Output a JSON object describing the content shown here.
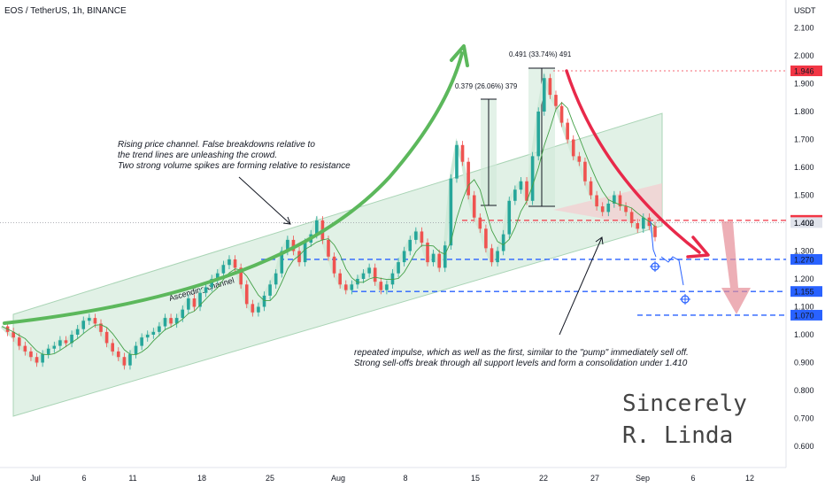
{
  "header": {
    "symbol_title": "EOS / TetherUS, 1h, BINANCE",
    "currency": "USDT"
  },
  "chart_data": {
    "type": "line",
    "title": "EOS / TetherUS, 1h, BINANCE",
    "ylabel": "USDT",
    "ylim": [
      0.55,
      2.17
    ],
    "y_ticks": [
      "2.100",
      "2.000",
      "1.900",
      "1.800",
      "1.700",
      "1.600",
      "1.500",
      "1.400",
      "1.300",
      "1.200",
      "1.100",
      "1.000",
      "0.900",
      "0.800",
      "0.700",
      "0.600"
    ],
    "x_ticks": [
      "Jul",
      "6",
      "11",
      "18",
      "25",
      "Aug",
      "8",
      "15",
      "22",
      "27",
      "Sep",
      "6",
      "12"
    ],
    "price_labels": [
      {
        "value": 1.946,
        "text": "1.946",
        "color": "#f23645"
      },
      {
        "value": 1.41,
        "text": "1.410",
        "color": "#f23645"
      },
      {
        "value": 1.402,
        "text": "1.402",
        "color": "#e0e3eb"
      },
      {
        "value": 1.27,
        "text": "1.270",
        "color": "#2962ff"
      },
      {
        "value": 1.155,
        "text": "1.155",
        "color": "#2962ff"
      },
      {
        "value": 1.07,
        "text": "1.070",
        "color": "#2962ff"
      }
    ],
    "price_series": [
      1.03,
      1.01,
      0.99,
      0.96,
      0.94,
      0.92,
      0.9,
      0.93,
      0.95,
      0.96,
      0.98,
      0.97,
      1.0,
      1.02,
      1.05,
      1.06,
      1.04,
      1.01,
      0.97,
      0.94,
      0.92,
      0.89,
      0.93,
      0.96,
      0.99,
      1.0,
      1.01,
      1.03,
      1.06,
      1.04,
      1.06,
      1.09,
      1.13,
      1.1,
      1.15,
      1.17,
      1.2,
      1.22,
      1.25,
      1.27,
      1.24,
      1.18,
      1.11,
      1.08,
      1.1,
      1.14,
      1.18,
      1.22,
      1.3,
      1.34,
      1.3,
      1.26,
      1.33,
      1.36,
      1.41,
      1.34,
      1.28,
      1.22,
      1.18,
      1.16,
      1.18,
      1.2,
      1.22,
      1.24,
      1.19,
      1.16,
      1.18,
      1.22,
      1.26,
      1.3,
      1.34,
      1.37,
      1.33,
      1.26,
      1.29,
      1.24,
      1.32,
      1.56,
      1.68,
      1.62,
      1.5,
      1.42,
      1.38,
      1.31,
      1.26,
      1.3,
      1.36,
      1.48,
      1.52,
      1.55,
      1.48,
      1.64,
      1.8,
      1.92,
      1.86,
      1.82,
      1.76,
      1.7,
      1.64,
      1.62,
      1.55,
      1.5,
      1.46,
      1.44,
      1.47,
      1.5,
      1.46,
      1.44,
      1.4,
      1.38,
      1.42,
      1.39,
      1.35
    ],
    "channel": {
      "label": "Ascending channel"
    },
    "measurements": [
      {
        "text": "0.379 (26.06%) 379"
      },
      {
        "text": "0.491 (33.74%) 491"
      }
    ],
    "annotations": {
      "channel_note": [
        "Rising price channel. False breakdowns relative to",
        "the trend lines are unleashing the crowd.",
        "Two strong volume spikes are forming relative to resistance"
      ],
      "impulse_note": [
        "repeated impulse, which as well as the first, similar to the \"pump\" immediately sell off.",
        "Strong sell-offs break through all support levels and form a consolidation under 1.410"
      ]
    },
    "signature": [
      "Sincerely",
      "R. Linda"
    ],
    "colors": {
      "candle_up": "#26a69a",
      "candle_down": "#ef5350",
      "channel_fill": "#d1ead9",
      "resistance": "#f23645",
      "support": "#2962ff",
      "arrow_green": "#4caf50",
      "arrow_red": "#e8294a"
    }
  }
}
